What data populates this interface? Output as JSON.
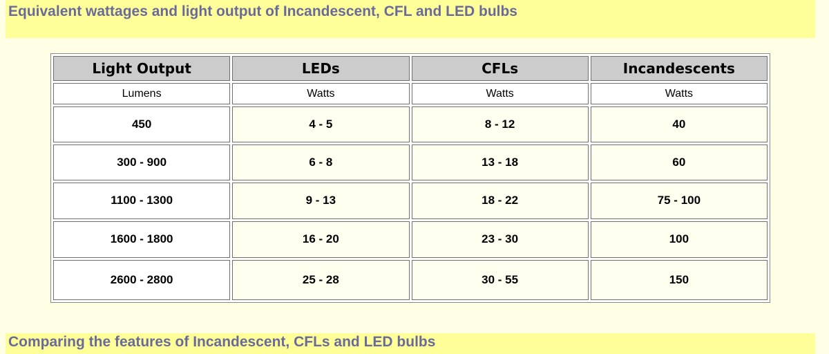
{
  "title": "Equivalent wattages and light output of Incandescent, CFL and LED bulbs",
  "next_heading": "Comparing the features of Incandescent, CFLs and LED bulbs",
  "colors": {
    "page_background": "#ffffe5",
    "banner_background": "#ffff99",
    "heading_text": "#6a6a9a",
    "table_header_background": "#cccccc"
  },
  "table": {
    "headers": [
      "Light Output",
      "LEDs",
      "CFLs",
      "Incandescents"
    ],
    "units": [
      "Lumens",
      "Watts",
      "Watts",
      "Watts"
    ],
    "rows": [
      [
        "450",
        "4 - 5",
        "8 - 12",
        "40"
      ],
      [
        "300 - 900",
        "6 - 8",
        "13 - 18",
        "60"
      ],
      [
        "1100 - 1300",
        "9 - 13",
        "18 - 22",
        "75 - 100"
      ],
      [
        "1600 - 1800",
        "16 - 20",
        "23 - 30",
        "100"
      ],
      [
        "2600 - 2800",
        "25 - 28",
        "30 - 55",
        "150"
      ]
    ]
  }
}
